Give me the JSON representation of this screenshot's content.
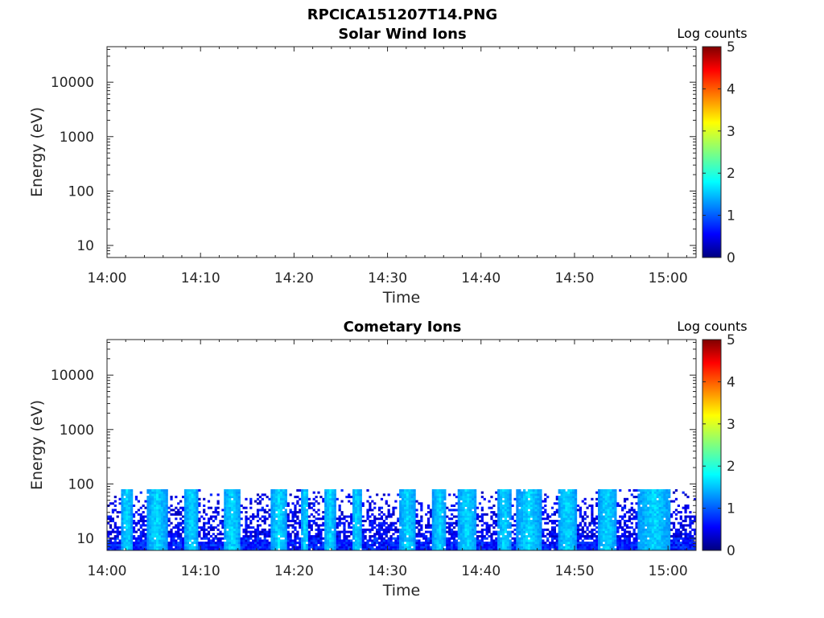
{
  "figure": {
    "title": "RPCICA151207T14.PNG"
  },
  "colorbar": {
    "label": "Log counts",
    "range": [
      0,
      5
    ],
    "ticks": [
      "0",
      "1",
      "2",
      "3",
      "4",
      "5"
    ],
    "colormap": "jet"
  },
  "chart_data": [
    {
      "type": "heatmap",
      "title": "Solar Wind Ions",
      "xlabel": "Time",
      "ylabel": "Energy (eV)",
      "x_ticks": [
        "14:00",
        "14:10",
        "14:20",
        "14:30",
        "14:40",
        "14:50",
        "15:00"
      ],
      "x_range_minutes": [
        0,
        63
      ],
      "y_scale": "log",
      "y_ticks": [
        "10",
        "100",
        "1000",
        "10000"
      ],
      "y_range": [
        6,
        45000
      ],
      "color_label": "Log counts",
      "color_range": [
        0,
        5
      ],
      "data": "empty"
    },
    {
      "type": "heatmap",
      "title": "Cometary Ions",
      "xlabel": "Time",
      "ylabel": "Energy (eV)",
      "x_ticks": [
        "14:00",
        "14:10",
        "14:20",
        "14:30",
        "14:40",
        "14:50",
        "15:00"
      ],
      "x_range_minutes": [
        0,
        63
      ],
      "y_scale": "log",
      "y_ticks": [
        "10",
        "100",
        "1000",
        "10000"
      ],
      "y_range": [
        6,
        45000
      ],
      "color_label": "Log counts",
      "color_range": [
        0,
        5
      ],
      "energy_max_with_counts": 80,
      "typical_log_counts": [
        0.5,
        1.8
      ],
      "bright_intervals_minutes": [
        [
          1.5,
          2.8
        ],
        [
          4.2,
          6.5
        ],
        [
          8.3,
          9.8
        ],
        [
          12.5,
          14.3
        ],
        [
          17.5,
          19.3
        ],
        [
          20.8,
          21.6
        ],
        [
          23.2,
          24.5
        ],
        [
          26.2,
          27.3
        ],
        [
          31.3,
          33.0
        ],
        [
          34.8,
          36.3
        ],
        [
          37.5,
          39.5
        ],
        [
          41.8,
          43.2
        ],
        [
          43.8,
          46.5
        ],
        [
          48.2,
          50.3
        ],
        [
          52.5,
          54.5
        ],
        [
          56.8,
          60.3
        ]
      ]
    }
  ]
}
